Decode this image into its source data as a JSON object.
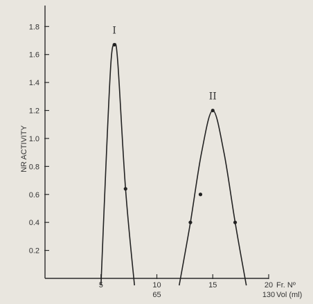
{
  "chart_data": {
    "type": "line",
    "ylabel": "NR ACTIVITY",
    "xlabel": "Fr. Nº",
    "x2label": "Vol (ml)",
    "xlim": [
      0,
      20
    ],
    "ylim": [
      0,
      1.95
    ],
    "x_ticks": [
      "5",
      "10",
      "15",
      "20"
    ],
    "x_ticks_values": [
      5,
      10,
      15,
      20
    ],
    "vol_ticks": [
      "65",
      "130"
    ],
    "vol_ticks_x": [
      10,
      20
    ],
    "y_ticks": [
      "0.2",
      "0.4",
      "0.6",
      "0.8",
      "1.0",
      "1.2",
      "1.4",
      "1.6",
      "1.8"
    ],
    "y_ticks_values": [
      0.2,
      0.4,
      0.6,
      0.8,
      1.0,
      1.2,
      1.4,
      1.6,
      1.8
    ],
    "grid": false,
    "series": [
      {
        "peak_label": "I",
        "curve": [
          [
            5,
            -0.05
          ],
          [
            5.5,
            0.9
          ],
          [
            5.9,
            1.55
          ],
          [
            6.2,
            1.67
          ],
          [
            6.5,
            1.55
          ],
          [
            7.2,
            0.64
          ],
          [
            8,
            -0.05
          ]
        ],
        "points": [
          [
            6.2,
            1.67
          ],
          [
            7.2,
            0.64
          ]
        ]
      },
      {
        "peak_label": "II",
        "curve": [
          [
            12,
            -0.05
          ],
          [
            13.0,
            0.4
          ],
          [
            14.0,
            0.9
          ],
          [
            15.0,
            1.2
          ],
          [
            16.0,
            0.9
          ],
          [
            17.0,
            0.4
          ],
          [
            18,
            -0.05
          ]
        ],
        "points": [
          [
            13.0,
            0.4
          ],
          [
            13.9,
            0.6
          ],
          [
            15.0,
            1.2
          ],
          [
            17.0,
            0.4
          ]
        ]
      }
    ]
  }
}
